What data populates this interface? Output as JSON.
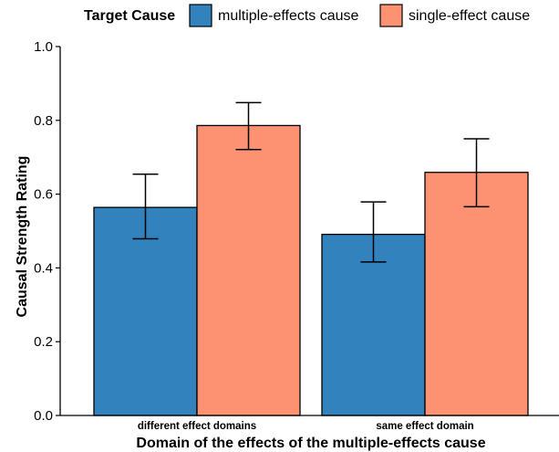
{
  "chart_data": {
    "type": "bar",
    "title": "",
    "xlabel": "Domain of the effects of the multiple-effects cause",
    "ylabel": "Causal Strength Rating",
    "ylim": [
      0,
      1
    ],
    "yticks": [
      "0.0",
      "0.2",
      "0.4",
      "0.6",
      "0.8",
      "1.0"
    ],
    "grid": false,
    "legend": {
      "title": "Target Cause",
      "position": "top"
    },
    "categories": [
      "different effect domains",
      "same effect domain"
    ],
    "series": [
      {
        "name": "multiple-effects cause",
        "color": "#3182bd",
        "values": [
          0.564,
          0.491
        ],
        "error_low": [
          0.479,
          0.416
        ],
        "error_high": [
          0.654,
          0.579
        ]
      },
      {
        "name": "single-effect cause",
        "color": "#fc9272",
        "values": [
          0.786,
          0.659
        ],
        "error_low": [
          0.721,
          0.566
        ],
        "error_high": [
          0.848,
          0.75
        ]
      }
    ]
  }
}
